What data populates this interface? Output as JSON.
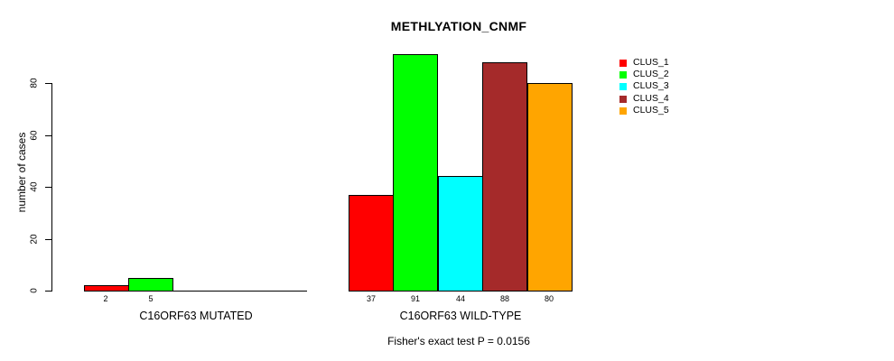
{
  "title": "METHLYATION_CNMF",
  "footnote": "Fisher's exact test P = 0.0156",
  "chart_data": {
    "type": "bar",
    "title": "METHLYATION_CNMF",
    "xlabel": "",
    "ylabel": "number of cases",
    "ylim": [
      0,
      92
    ],
    "yticks": [
      0,
      20,
      40,
      60,
      80
    ],
    "grid": false,
    "legend_position": "right-top",
    "bar_borders": "#000000",
    "series": [
      {
        "name": "CLUS_1",
        "color": "#FF0000"
      },
      {
        "name": "CLUS_2",
        "color": "#00FF00"
      },
      {
        "name": "CLUS_3",
        "color": "#00FFFF"
      },
      {
        "name": "CLUS_4",
        "color": "#A52A2A"
      },
      {
        "name": "CLUS_5",
        "color": "#FFA500"
      }
    ],
    "groups": [
      {
        "label": "C16ORF63 MUTATED",
        "values": [
          2,
          5,
          0,
          0,
          0
        ]
      },
      {
        "label": "C16ORF63 WILD-TYPE",
        "values": [
          37,
          91,
          44,
          88,
          80
        ]
      }
    ],
    "annotation": "Fisher's exact test P = 0.0156"
  }
}
